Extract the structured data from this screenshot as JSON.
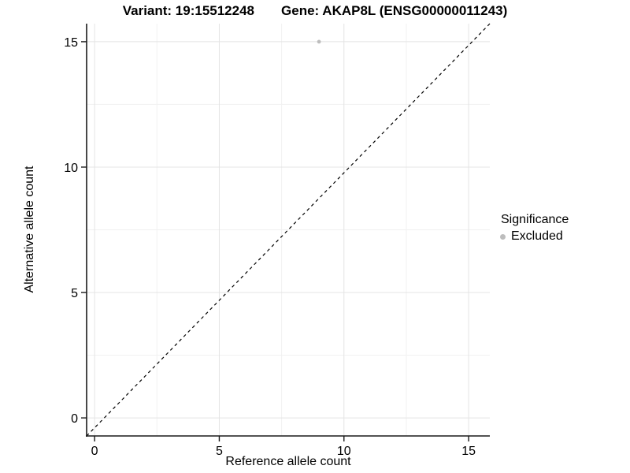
{
  "title": {
    "variant": "Variant: 19:15512248",
    "gene": "Gene: AKAP8L (ENSG00000011243)"
  },
  "axes": {
    "x_label": "Reference allele count",
    "y_label": "Alternative allele count"
  },
  "legend": {
    "title": "Significance",
    "items": [
      {
        "label": "Excluded",
        "color": "#bdbdbd"
      }
    ]
  },
  "chart_data": {
    "type": "scatter",
    "title": "Variant: 19:15512248   Gene: AKAP8L (ENSG00000011243)",
    "xlabel": "Reference allele count",
    "ylabel": "Alternative allele count",
    "xlim": [
      -0.32,
      15.85
    ],
    "ylim": [
      -0.72,
      15.72
    ],
    "x_ticks": [
      0,
      5,
      10,
      15
    ],
    "y_ticks": [
      0,
      5,
      10,
      15
    ],
    "x_minor_ticks": [
      2.5,
      7.5,
      12.5
    ],
    "y_minor_ticks": [
      2.5,
      7.5,
      12.5
    ],
    "grid": true,
    "legend_position": "right",
    "series": [
      {
        "name": "Excluded",
        "color": "#bdbdbd",
        "points": [
          {
            "x": 9,
            "y": 15
          }
        ]
      }
    ],
    "reference_line": {
      "style": "dashed",
      "color": "#000000",
      "description": "identity line y = x drawn corner to corner"
    },
    "colors": {
      "axis_line": "#1a1a1a",
      "tick_text": "#000000",
      "grid_major": "#e4e4e4",
      "grid_minor": "#f1f1f1",
      "point": "#c0c0c0"
    }
  }
}
